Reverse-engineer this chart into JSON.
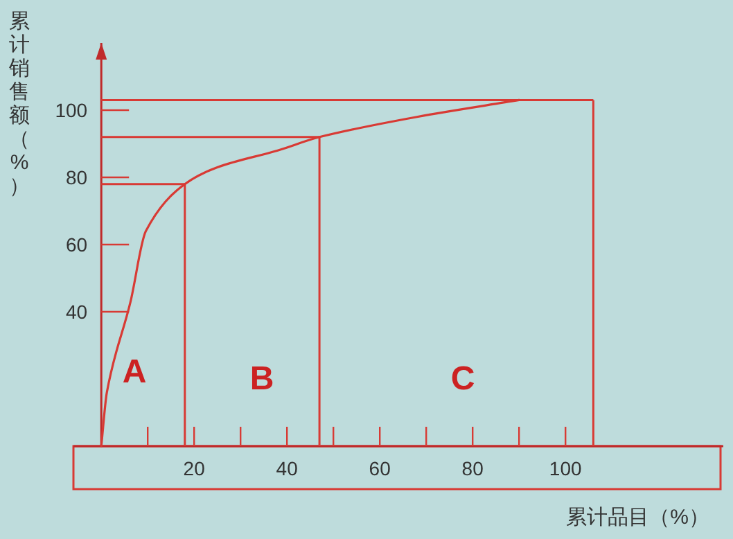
{
  "chart_data": {
    "type": "line",
    "xlabel": "累计品目（%）",
    "ylabel": "累计销售额（%）",
    "series": [
      {
        "color": "#d83a34",
        "x": [
          0,
          1.2,
          6.3,
          9.6,
          18,
          25,
          38,
          47,
          68,
          90
        ],
        "values": [
          0,
          16,
          43,
          64,
          78,
          83,
          88,
          92,
          98,
          103
        ]
      }
    ],
    "xlim": [
      -6,
      134
    ],
    "ylim": [
      0,
      120
    ],
    "xticks": [
      {
        "value": 10,
        "label": null
      },
      20,
      {
        "value": 30,
        "label": null
      },
      40,
      {
        "value": 50,
        "label": null
      },
      60,
      {
        "value": 70,
        "label": null
      },
      80,
      {
        "value": 90,
        "label": null
      },
      100
    ],
    "yticks": [
      40,
      60,
      80,
      100
    ],
    "ref_lines": [
      {
        "axis": "x",
        "value": 18,
        "color": "#d83a34"
      },
      {
        "axis": "x",
        "value": 47,
        "color": "#d83a34"
      },
      {
        "axis": "x",
        "value": 106,
        "color": "#d83a34"
      },
      {
        "axis": "y",
        "value": 78,
        "color": "#d83a34"
      },
      {
        "axis": "y",
        "value": 92,
        "color": "#d83a34"
      },
      {
        "axis": "y",
        "value": 103,
        "color": "#d83a34"
      }
    ],
    "annotations": [
      "A",
      "B",
      "C"
    ]
  }
}
